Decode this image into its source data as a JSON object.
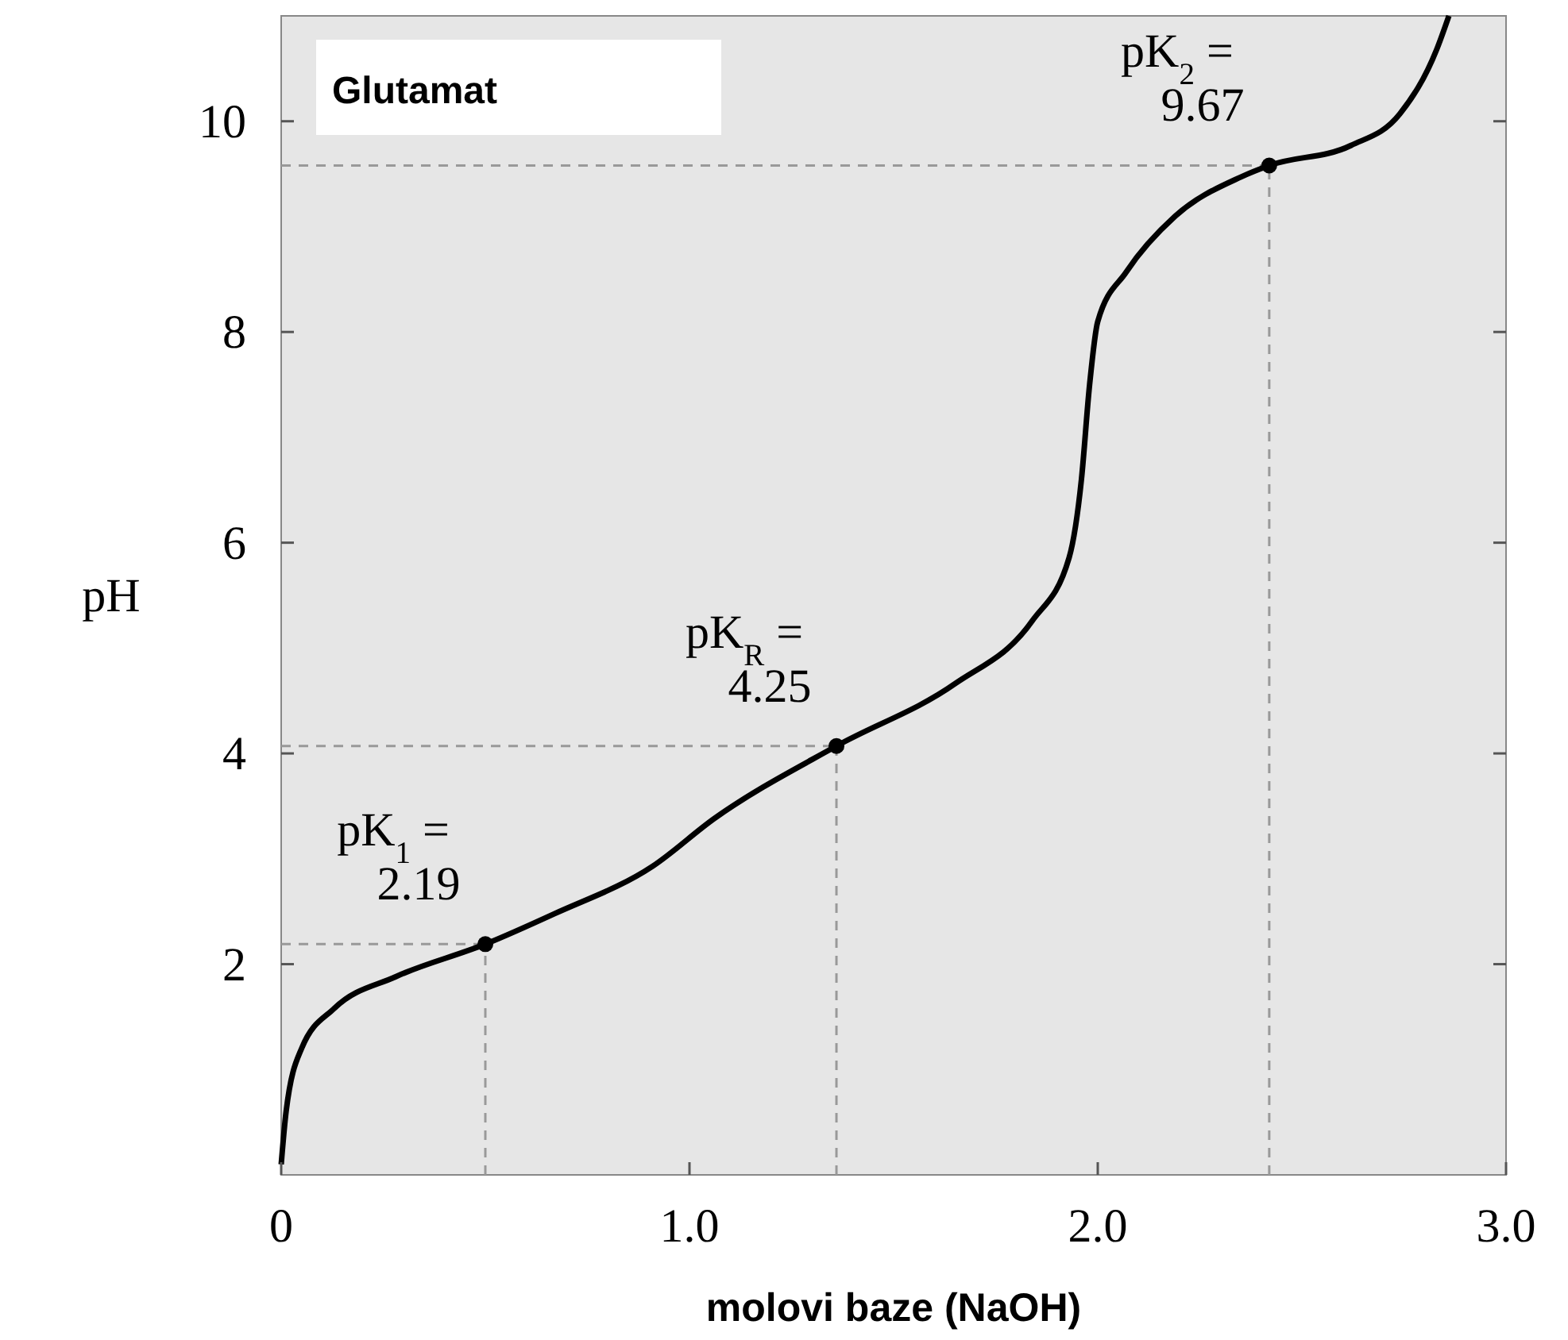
{
  "chart_data": {
    "type": "line",
    "title": "Glutamat",
    "xlabel": "molovi baze (NaOH)",
    "ylabel": "pH",
    "xlim": [
      0,
      3
    ],
    "ylim": [
      0,
      11
    ],
    "xticks": [
      0,
      {
        "value": 1,
        "label": "1.0"
      },
      {
        "value": 2,
        "label": "2.0"
      },
      {
        "value": 3,
        "label": "3.0"
      }
    ],
    "yticks": [
      2,
      4,
      6,
      8,
      10
    ],
    "series": [
      {
        "type": "line",
        "color": "#000000",
        "marker": "none",
        "line_style": "solid",
        "x": [
          0,
          0.012,
          0.05,
          0.13,
          0.28,
          0.5,
          0.67,
          0.91,
          1.06,
          1.36,
          1.65,
          1.84,
          1.93,
          1.96,
          1.98,
          2.0,
          2.07,
          2.19,
          2.35,
          2.42,
          2.62,
          2.74,
          2.83,
          2.86
        ],
        "values": [
          0.1,
          0.6,
          1.2,
          1.58,
          1.88,
          2.19,
          2.48,
          2.93,
          3.38,
          4.07,
          4.66,
          5.26,
          5.86,
          6.6,
          7.5,
          8.1,
          8.57,
          9.1,
          9.47,
          9.58,
          9.77,
          10.07,
          10.68,
          11.0
        ]
      },
      {
        "type": "scatter",
        "color": "#000000",
        "marker": "circle",
        "x": [
          0.5,
          1.36,
          2.42
        ],
        "values": [
          2.19,
          4.07,
          9.58
        ]
      }
    ],
    "ref_lines": [
      {
        "axis": "y",
        "value": 2.19,
        "color": "#999999",
        "line_style": "dashed"
      },
      {
        "axis": "y",
        "value": 4.07,
        "color": "#999999",
        "line_style": "dashed"
      },
      {
        "axis": "y",
        "value": 9.58,
        "color": "#999999",
        "line_style": "dashed"
      },
      {
        "axis": "x",
        "value": 0.5,
        "color": "#999999",
        "line_style": "dashed"
      },
      {
        "axis": "x",
        "value": 1.36,
        "color": "#999999",
        "line_style": "dashed"
      },
      {
        "axis": "x",
        "value": 2.42,
        "color": "#999999",
        "line_style": "dashed"
      }
    ],
    "annotations": [
      {
        "text": "pK$_{1}$ =\n2.19",
        "x": 0.5,
        "y": 2.19
      },
      {
        "text": "pK$_{R}$ =\n4.25",
        "x": 1.36,
        "y": 4.07
      },
      {
        "text": "pK$_{2}$ =\n9.67",
        "x": 2.42,
        "y": 9.58
      }
    ]
  }
}
